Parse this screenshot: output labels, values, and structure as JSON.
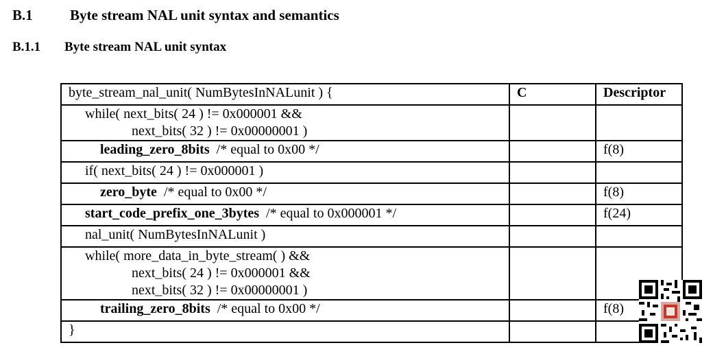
{
  "section": {
    "number": "B.1",
    "title": "Byte stream NAL unit syntax and semantics"
  },
  "subsection": {
    "number": "B.1.1",
    "title": "Byte stream NAL unit syntax"
  },
  "table": {
    "header": {
      "syntax": "byte_stream_nal_unit( NumBytesInNALunit ) {",
      "c": "C",
      "descriptor": "Descriptor"
    },
    "rows": [
      {
        "line1": "while( next_bits( 24 )  !=  0x000001 &&",
        "line2": "next_bits( 32 ) != 0x00000001 )",
        "descriptor": ""
      },
      {
        "keyword": "leading_zero_8bits",
        "comment": "/* equal to 0x00 */",
        "descriptor": "f(8)"
      },
      {
        "text": "if( next_bits( 24 ) != 0x000001 )",
        "descriptor": ""
      },
      {
        "keyword": "zero_byte",
        "comment": "/* equal to 0x00 */",
        "descriptor": "f(8)"
      },
      {
        "keyword": "start_code_prefix_one_3bytes",
        "comment": "/* equal to 0x000001 */",
        "descriptor": "f(24)"
      },
      {
        "text": "nal_unit( NumBytesInNALunit )",
        "descriptor": ""
      },
      {
        "line1": "while( more_data_in_byte_stream( ) &&",
        "line2": "next_bits( 24 ) != 0x000001 &&",
        "line3": "next_bits( 32 ) != 0x00000001 )",
        "descriptor": ""
      },
      {
        "keyword": "trailing_zero_8bits",
        "comment": "/* equal to 0x00 */",
        "descriptor": "f(8)"
      },
      {
        "text": "}",
        "descriptor": ""
      }
    ]
  },
  "qr_icon": "qr-code-icon"
}
